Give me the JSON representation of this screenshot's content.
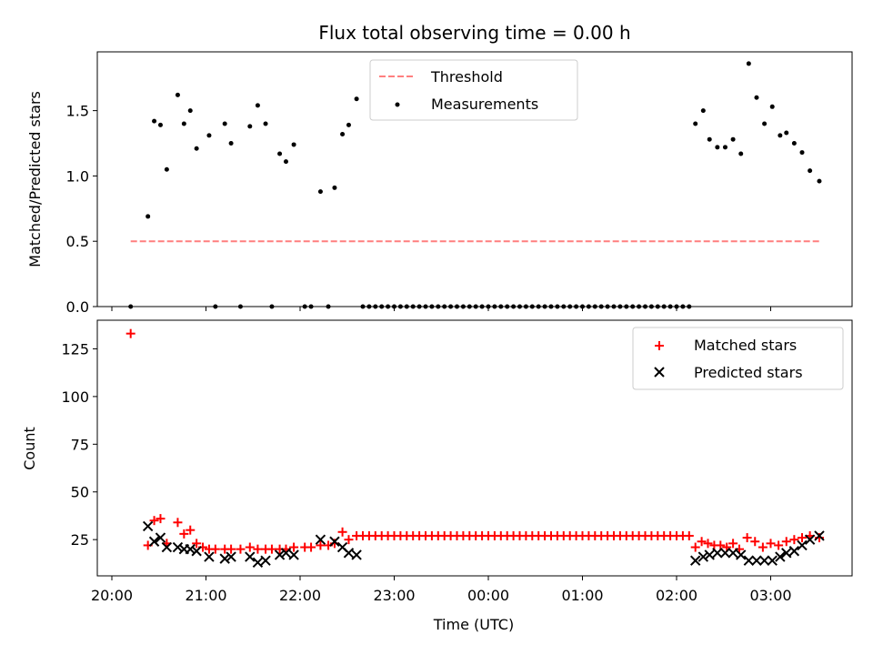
{
  "chart_data": [
    {
      "type": "scatter",
      "title": "Flux total observing time = 0.00 h",
      "xlabel": "",
      "ylabel": "Matched/Predicted stars",
      "ylim": [
        0,
        1.95
      ],
      "xlim": [
        "20:00",
        "03:56"
      ],
      "yticks": [
        "0.0",
        "0.5",
        "1.0",
        "1.5"
      ],
      "legend": {
        "position": "top-center",
        "entries": [
          "Threshold",
          "Measurements"
        ]
      },
      "threshold": {
        "name": "Threshold",
        "value": 0.5,
        "x_start": "20:12",
        "x_end": "03:32",
        "color": "#ff7f7f",
        "style": "dashed"
      },
      "measurements": {
        "name": "Measurements",
        "color": "#000000",
        "points": [
          [
            "20:12",
            0.0
          ],
          [
            "20:23",
            0.69
          ],
          [
            "20:27",
            1.42
          ],
          [
            "20:31",
            1.39
          ],
          [
            "20:35",
            1.05
          ],
          [
            "20:42",
            1.62
          ],
          [
            "20:46",
            1.4
          ],
          [
            "20:50",
            1.5
          ],
          [
            "20:54",
            1.21
          ],
          [
            "21:02",
            1.31
          ],
          [
            "21:06",
            0.0
          ],
          [
            "21:12",
            1.4
          ],
          [
            "21:16",
            1.25
          ],
          [
            "21:22",
            0.0
          ],
          [
            "21:28",
            1.38
          ],
          [
            "21:33",
            1.54
          ],
          [
            "21:38",
            1.4
          ],
          [
            "21:42",
            0.0
          ],
          [
            "21:47",
            1.17
          ],
          [
            "21:51",
            1.11
          ],
          [
            "21:56",
            1.24
          ],
          [
            "22:03",
            0.0
          ],
          [
            "22:07",
            0.0
          ],
          [
            "22:13",
            0.88
          ],
          [
            "22:18",
            0.0
          ],
          [
            "22:22",
            0.91
          ],
          [
            "22:27",
            1.32
          ],
          [
            "22:31",
            1.39
          ],
          [
            "22:36",
            1.59
          ],
          [
            "22:40",
            0.0
          ],
          [
            "22:44",
            0.0
          ],
          [
            "22:48",
            0.0
          ],
          [
            "22:52",
            0.0
          ],
          [
            "22:56",
            0.0
          ],
          [
            "23:00",
            0.0
          ],
          [
            "23:04",
            0.0
          ],
          [
            "23:08",
            0.0
          ],
          [
            "23:12",
            0.0
          ],
          [
            "23:16",
            0.0
          ],
          [
            "23:20",
            0.0
          ],
          [
            "23:24",
            0.0
          ],
          [
            "23:28",
            0.0
          ],
          [
            "23:32",
            0.0
          ],
          [
            "23:36",
            0.0
          ],
          [
            "23:40",
            0.0
          ],
          [
            "23:44",
            0.0
          ],
          [
            "23:48",
            0.0
          ],
          [
            "23:52",
            0.0
          ],
          [
            "23:56",
            0.0
          ],
          [
            "00:00",
            0.0
          ],
          [
            "00:04",
            0.0
          ],
          [
            "00:08",
            0.0
          ],
          [
            "00:12",
            0.0
          ],
          [
            "00:16",
            0.0
          ],
          [
            "00:20",
            0.0
          ],
          [
            "00:24",
            0.0
          ],
          [
            "00:28",
            0.0
          ],
          [
            "00:32",
            0.0
          ],
          [
            "00:36",
            0.0
          ],
          [
            "00:40",
            0.0
          ],
          [
            "00:44",
            0.0
          ],
          [
            "00:48",
            0.0
          ],
          [
            "00:52",
            0.0
          ],
          [
            "00:56",
            0.0
          ],
          [
            "01:00",
            0.0
          ],
          [
            "01:04",
            0.0
          ],
          [
            "01:08",
            0.0
          ],
          [
            "01:12",
            0.0
          ],
          [
            "01:16",
            0.0
          ],
          [
            "01:20",
            0.0
          ],
          [
            "01:24",
            0.0
          ],
          [
            "01:28",
            0.0
          ],
          [
            "01:32",
            0.0
          ],
          [
            "01:36",
            0.0
          ],
          [
            "01:40",
            0.0
          ],
          [
            "01:44",
            0.0
          ],
          [
            "01:48",
            0.0
          ],
          [
            "01:52",
            0.0
          ],
          [
            "01:56",
            0.0
          ],
          [
            "02:00",
            0.0
          ],
          [
            "02:04",
            0.0
          ],
          [
            "02:08",
            0.0
          ],
          [
            "02:12",
            1.4
          ],
          [
            "02:17",
            1.5
          ],
          [
            "02:21",
            1.28
          ],
          [
            "02:26",
            1.22
          ],
          [
            "02:31",
            1.22
          ],
          [
            "02:36",
            1.28
          ],
          [
            "02:41",
            1.17
          ],
          [
            "02:46",
            1.86
          ],
          [
            "02:51",
            1.6
          ],
          [
            "02:56",
            1.4
          ],
          [
            "03:01",
            1.53
          ],
          [
            "03:06",
            1.31
          ],
          [
            "03:10",
            1.33
          ],
          [
            "03:15",
            1.25
          ],
          [
            "03:20",
            1.18
          ],
          [
            "03:25",
            1.04
          ],
          [
            "03:31",
            0.96
          ]
        ]
      }
    },
    {
      "type": "scatter",
      "title": "",
      "xlabel": "Time (UTC)",
      "ylabel": "Count",
      "ylim": [
        6,
        140
      ],
      "xlim": [
        "20:00",
        "03:56"
      ],
      "yticks": [
        "25",
        "50",
        "75",
        "100",
        "125"
      ],
      "xticks": [
        "20:00",
        "21:00",
        "22:00",
        "23:00",
        "00:00",
        "01:00",
        "02:00",
        "03:00"
      ],
      "legend": {
        "position": "top-right",
        "entries": [
          "Matched stars",
          "Predicted stars"
        ]
      },
      "matched": {
        "name": "Matched stars",
        "color": "#ff0000",
        "marker": "plus",
        "points": [
          [
            "20:12",
            133
          ],
          [
            "20:23",
            22
          ],
          [
            "20:27",
            35
          ],
          [
            "20:31",
            36
          ],
          [
            "20:35",
            23
          ],
          [
            "20:42",
            34
          ],
          [
            "20:46",
            28
          ],
          [
            "20:50",
            30
          ],
          [
            "20:54",
            23
          ],
          [
            "20:58",
            21
          ],
          [
            "21:02",
            20
          ],
          [
            "21:06",
            20
          ],
          [
            "21:12",
            20
          ],
          [
            "21:16",
            20
          ],
          [
            "21:22",
            20
          ],
          [
            "21:28",
            21
          ],
          [
            "21:33",
            20
          ],
          [
            "21:38",
            20
          ],
          [
            "21:42",
            20
          ],
          [
            "21:47",
            20
          ],
          [
            "21:51",
            20
          ],
          [
            "21:56",
            21
          ],
          [
            "22:03",
            21
          ],
          [
            "22:07",
            21
          ],
          [
            "22:13",
            22
          ],
          [
            "22:18",
            22
          ],
          [
            "22:22",
            23
          ],
          [
            "22:27",
            29
          ],
          [
            "22:31",
            25
          ],
          [
            "22:36",
            27
          ],
          [
            "22:40",
            27
          ],
          [
            "22:44",
            27
          ],
          [
            "22:48",
            27
          ],
          [
            "22:52",
            27
          ],
          [
            "22:56",
            27
          ],
          [
            "23:00",
            27
          ],
          [
            "23:04",
            27
          ],
          [
            "23:08",
            27
          ],
          [
            "23:12",
            27
          ],
          [
            "23:16",
            27
          ],
          [
            "23:20",
            27
          ],
          [
            "23:24",
            27
          ],
          [
            "23:28",
            27
          ],
          [
            "23:32",
            27
          ],
          [
            "23:36",
            27
          ],
          [
            "23:40",
            27
          ],
          [
            "23:44",
            27
          ],
          [
            "23:48",
            27
          ],
          [
            "23:52",
            27
          ],
          [
            "23:56",
            27
          ],
          [
            "00:00",
            27
          ],
          [
            "00:04",
            27
          ],
          [
            "00:08",
            27
          ],
          [
            "00:12",
            27
          ],
          [
            "00:16",
            27
          ],
          [
            "00:20",
            27
          ],
          [
            "00:24",
            27
          ],
          [
            "00:28",
            27
          ],
          [
            "00:32",
            27
          ],
          [
            "00:36",
            27
          ],
          [
            "00:40",
            27
          ],
          [
            "00:44",
            27
          ],
          [
            "00:48",
            27
          ],
          [
            "00:52",
            27
          ],
          [
            "00:56",
            27
          ],
          [
            "01:00",
            27
          ],
          [
            "01:04",
            27
          ],
          [
            "01:08",
            27
          ],
          [
            "01:12",
            27
          ],
          [
            "01:16",
            27
          ],
          [
            "01:20",
            27
          ],
          [
            "01:24",
            27
          ],
          [
            "01:28",
            27
          ],
          [
            "01:32",
            27
          ],
          [
            "01:36",
            27
          ],
          [
            "01:40",
            27
          ],
          [
            "01:44",
            27
          ],
          [
            "01:48",
            27
          ],
          [
            "01:52",
            27
          ],
          [
            "01:56",
            27
          ],
          [
            "02:00",
            27
          ],
          [
            "02:04",
            27
          ],
          [
            "02:08",
            27
          ],
          [
            "02:12",
            21
          ],
          [
            "02:16",
            24
          ],
          [
            "02:20",
            23
          ],
          [
            "02:24",
            22
          ],
          [
            "02:28",
            22
          ],
          [
            "02:32",
            21
          ],
          [
            "02:36",
            23
          ],
          [
            "02:40",
            20
          ],
          [
            "02:45",
            26
          ],
          [
            "02:50",
            24
          ],
          [
            "02:55",
            21
          ],
          [
            "03:00",
            23
          ],
          [
            "03:05",
            22
          ],
          [
            "03:10",
            24
          ],
          [
            "03:15",
            25
          ],
          [
            "03:20",
            26
          ],
          [
            "03:25",
            27
          ],
          [
            "03:31",
            26
          ]
        ]
      },
      "predicted": {
        "name": "Predicted stars",
        "color": "#000000",
        "marker": "x",
        "points": [
          [
            "20:23",
            32
          ],
          [
            "20:27",
            24
          ],
          [
            "20:31",
            26
          ],
          [
            "20:35",
            21
          ],
          [
            "20:42",
            21
          ],
          [
            "20:46",
            20
          ],
          [
            "20:50",
            20
          ],
          [
            "20:54",
            19
          ],
          [
            "21:02",
            16
          ],
          [
            "21:12",
            15
          ],
          [
            "21:16",
            16
          ],
          [
            "21:28",
            16
          ],
          [
            "21:33",
            13
          ],
          [
            "21:38",
            14
          ],
          [
            "21:47",
            17
          ],
          [
            "21:51",
            18
          ],
          [
            "21:56",
            17
          ],
          [
            "22:13",
            25
          ],
          [
            "22:22",
            24
          ],
          [
            "22:27",
            21
          ],
          [
            "22:31",
            18
          ],
          [
            "22:36",
            17
          ],
          [
            "02:12",
            14
          ],
          [
            "02:17",
            16
          ],
          [
            "02:21",
            17
          ],
          [
            "02:26",
            18
          ],
          [
            "02:31",
            18
          ],
          [
            "02:36",
            18
          ],
          [
            "02:41",
            17
          ],
          [
            "02:46",
            14
          ],
          [
            "02:51",
            14
          ],
          [
            "02:56",
            14
          ],
          [
            "03:01",
            14
          ],
          [
            "03:06",
            16
          ],
          [
            "03:10",
            18
          ],
          [
            "03:15",
            19
          ],
          [
            "03:20",
            22
          ],
          [
            "03:25",
            25
          ],
          [
            "03:31",
            27
          ]
        ]
      }
    }
  ]
}
